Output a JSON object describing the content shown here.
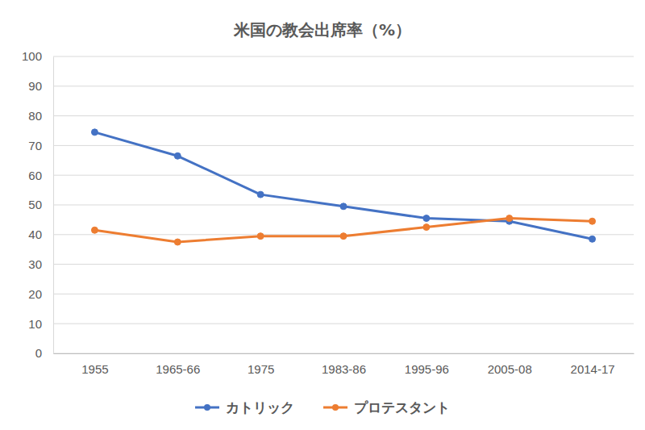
{
  "chart_data": {
    "type": "line",
    "title": "米国の教会出席率（%）",
    "categories": [
      "1955",
      "1965-66",
      "1975",
      "1983-86",
      "1995-96",
      "2005-08",
      "2014-17"
    ],
    "series": [
      {
        "name": "カトリック",
        "color": "#4472c4",
        "marker": "circle",
        "line_style": "solid",
        "values": [
          74.5,
          66.5,
          53.5,
          49.5,
          45.5,
          44.5,
          38.5
        ]
      },
      {
        "name": "プロテスタント",
        "color": "#ed7d31",
        "marker": "circle",
        "line_style": "solid",
        "values": [
          41.5,
          37.5,
          39.5,
          39.5,
          42.5,
          45.5,
          44.5
        ]
      }
    ],
    "ylim": [
      0,
      100
    ],
    "yticks": [
      0,
      10,
      20,
      30,
      40,
      50,
      60,
      70,
      80,
      90,
      100
    ],
    "grid": true,
    "legend": "bottom"
  }
}
